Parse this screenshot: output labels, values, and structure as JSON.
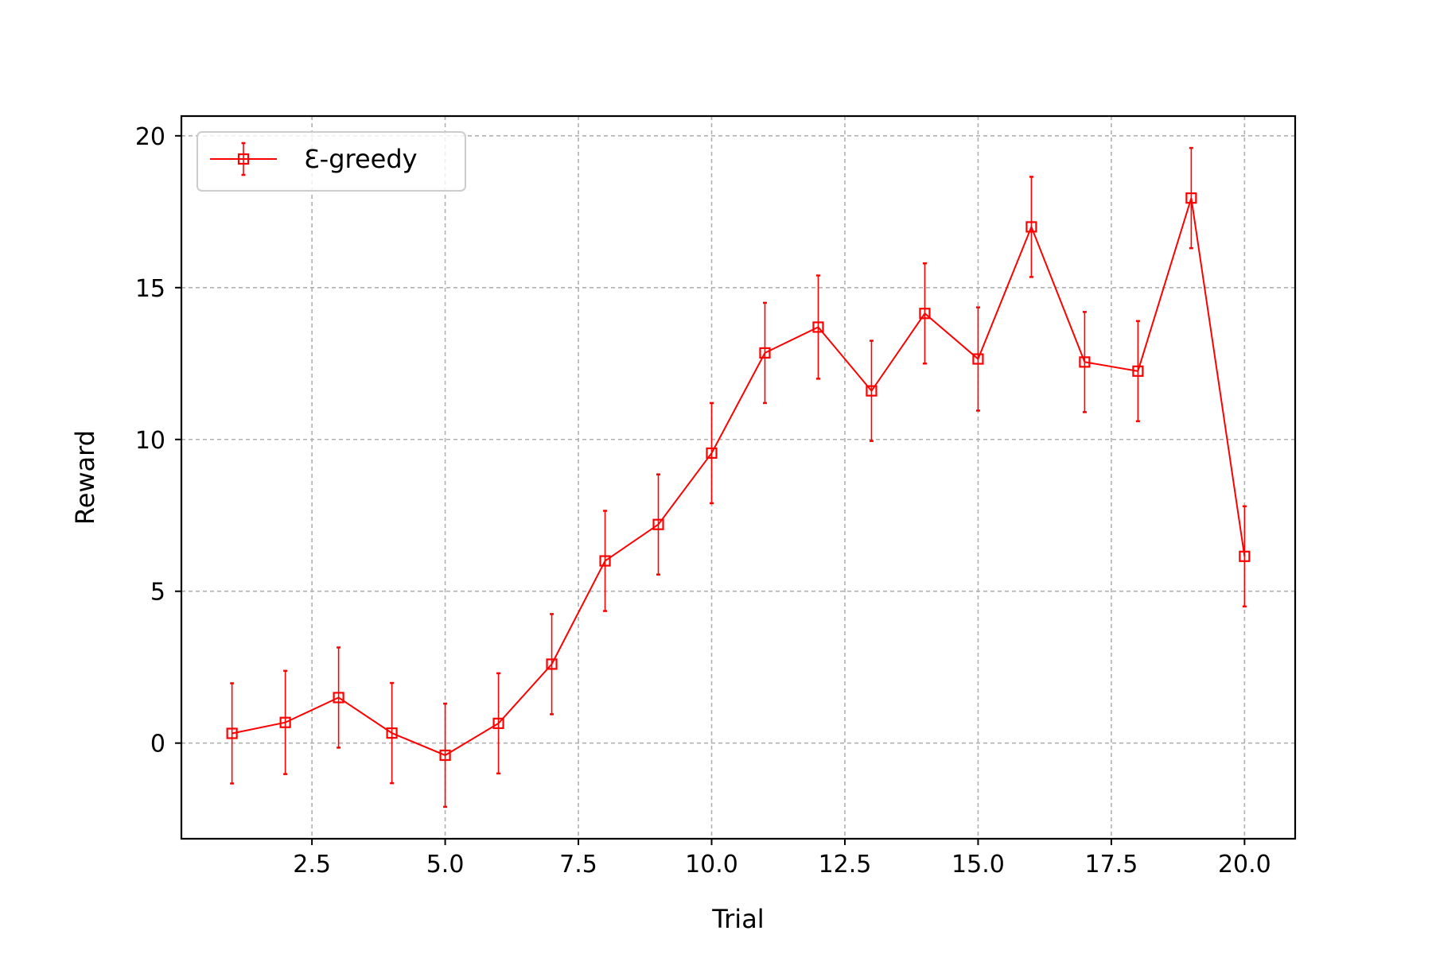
{
  "chart_data": {
    "type": "line",
    "title": "",
    "xlabel": "Trial",
    "ylabel": "Reward",
    "xlim": [
      0.05,
      20.95
    ],
    "ylim": [
      -3.15,
      20.65
    ],
    "xticks": [
      2.5,
      5.0,
      7.5,
      10.0,
      12.5,
      15.0,
      17.5,
      20.0
    ],
    "xtick_labels": [
      "2.5",
      "5.0",
      "7.5",
      "10.0",
      "12.5",
      "15.0",
      "17.5",
      "20.0"
    ],
    "yticks": [
      0,
      5,
      10,
      15,
      20
    ],
    "ytick_labels": [
      "0",
      "5",
      "10",
      "15",
      "20"
    ],
    "grid": true,
    "legend_position": "top-left",
    "series": [
      {
        "name": "Ɛ-greedy",
        "color": "#ff0000",
        "marker": "square-open",
        "x": [
          1,
          2,
          3,
          4,
          5,
          6,
          7,
          8,
          9,
          10,
          11,
          12,
          13,
          14,
          15,
          16,
          17,
          18,
          19,
          20
        ],
        "y": [
          0.32,
          0.68,
          1.5,
          0.33,
          -0.4,
          0.65,
          2.6,
          6.0,
          7.2,
          9.55,
          12.85,
          13.7,
          11.6,
          14.15,
          12.65,
          17.0,
          12.55,
          12.25,
          17.95,
          6.15
        ],
        "yerr": [
          1.65,
          1.7,
          1.65,
          1.65,
          1.7,
          1.65,
          1.65,
          1.65,
          1.65,
          1.65,
          1.65,
          1.7,
          1.65,
          1.65,
          1.7,
          1.65,
          1.65,
          1.65,
          1.65,
          1.65
        ]
      }
    ]
  }
}
